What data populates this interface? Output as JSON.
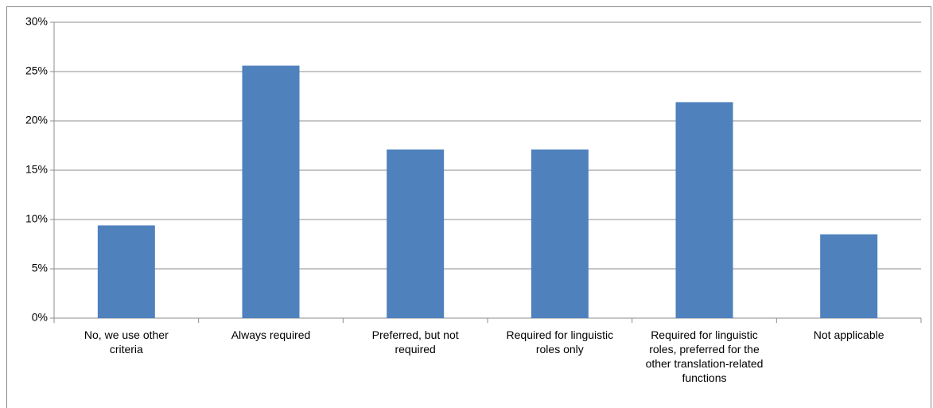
{
  "chart_data": {
    "type": "bar",
    "categories": [
      "No, we use other criteria",
      "Always required",
      "Preferred, but not required",
      "Required for linguistic roles only",
      "Required for linguistic roles, preferred for the other translation-related functions",
      "Not applicable"
    ],
    "values": [
      9.4,
      25.6,
      17.1,
      17.1,
      21.9,
      8.5
    ],
    "color": "#4f81bd",
    "ylim": [
      0,
      30
    ],
    "yticks": [
      {
        "value": 0,
        "label": "0%"
      },
      {
        "value": 5,
        "label": "5%"
      },
      {
        "value": 10,
        "label": "10%"
      },
      {
        "value": 15,
        "label": "15%"
      },
      {
        "value": 20,
        "label": "20%"
      },
      {
        "value": 25,
        "label": "25%"
      },
      {
        "value": 30,
        "label": "30%"
      }
    ],
    "grid": true
  }
}
